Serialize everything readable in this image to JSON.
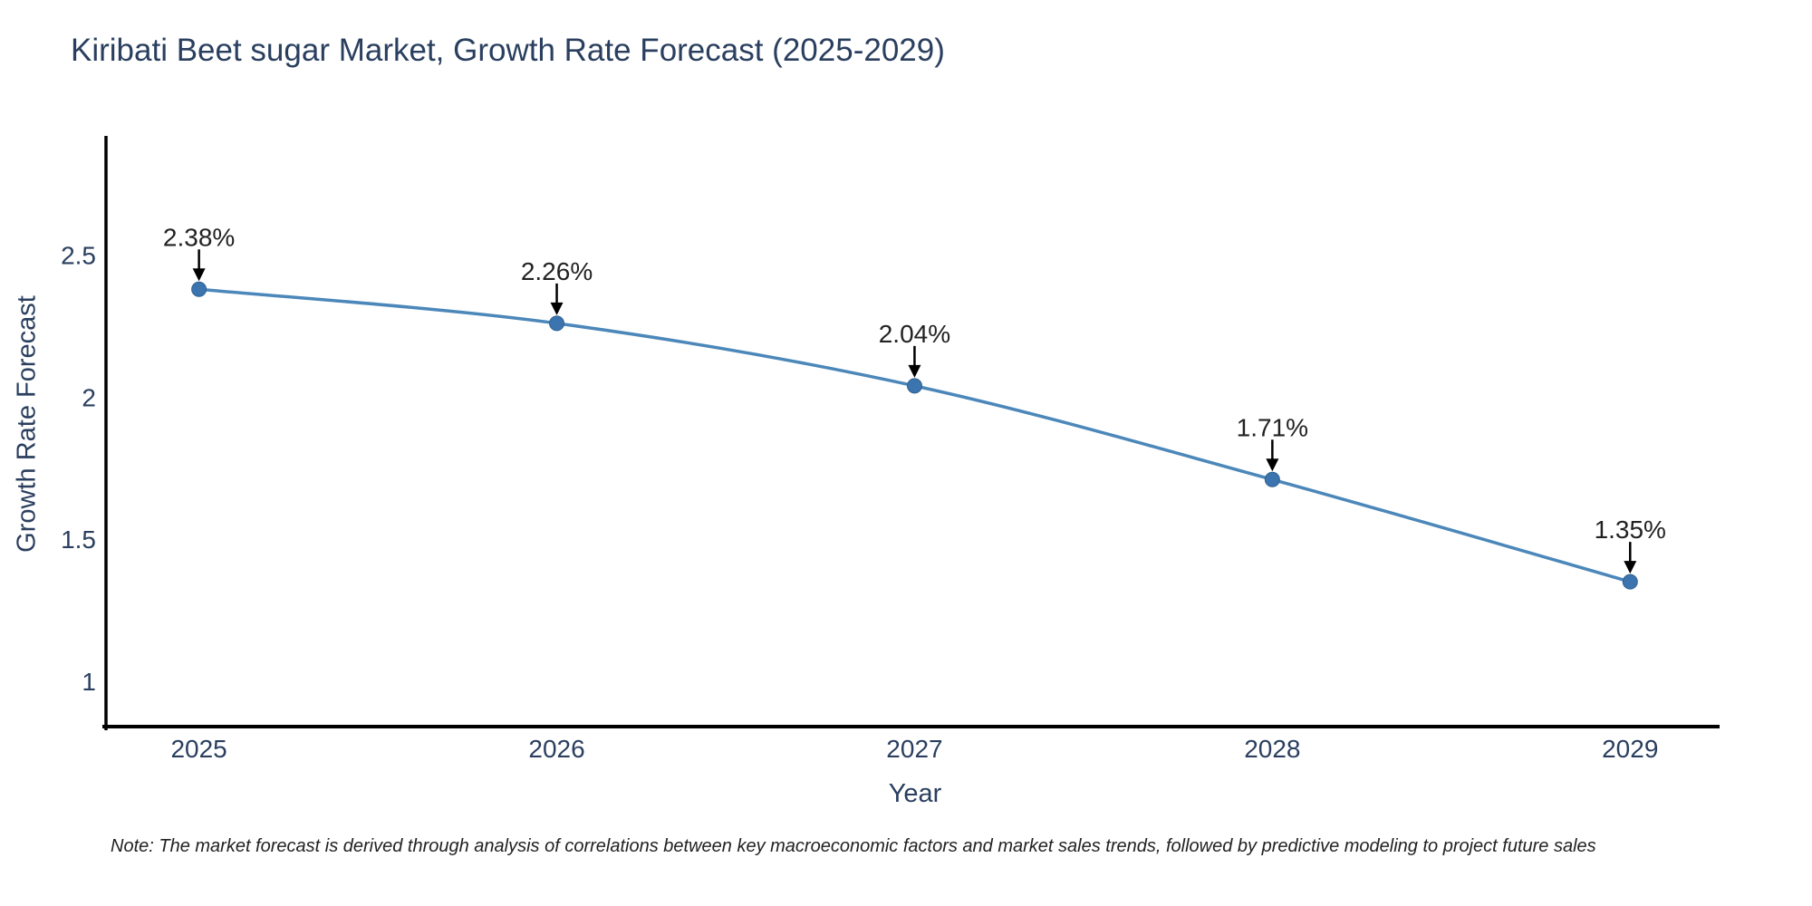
{
  "title": "Kiribati Beet sugar Market, Growth Rate Forecast (2025-2029)",
  "axes": {
    "x_label": "Year",
    "y_label": "Growth Rate Forecast"
  },
  "note": "Note: The market forecast is derived through analysis of correlations between key macroeconomic factors and market sales trends, followed by predictive modeling to project future sales",
  "chart_data": {
    "type": "line",
    "title": "Kiribati Beet sugar Market, Growth Rate Forecast (2025-2029)",
    "xlabel": "Year",
    "ylabel": "Growth Rate Forecast",
    "x": [
      2025,
      2026,
      2027,
      2028,
      2029
    ],
    "series": [
      {
        "name": "Growth Rate Forecast",
        "values": [
          2.38,
          2.26,
          2.04,
          1.71,
          1.35
        ]
      }
    ],
    "point_labels": [
      "2.38%",
      "2.26%",
      "2.04%",
      "1.71%",
      "1.35%"
    ],
    "xticks": [
      "2025",
      "2026",
      "2027",
      "2028",
      "2029"
    ],
    "yticks": [
      1,
      1.5,
      2,
      2.5
    ],
    "xlim": [
      2024.73,
      2029.25
    ],
    "ylim": [
      0.84,
      2.92
    ],
    "grid": false,
    "legend_position": "none",
    "colors": {
      "line": "#4c87ba",
      "marker": "#3b74ae",
      "marker_edge": "#2f618f",
      "axis": "#000000",
      "tick_text": "#2a3f5f",
      "annotation_text": "#222222",
      "arrow": "#000000"
    }
  }
}
